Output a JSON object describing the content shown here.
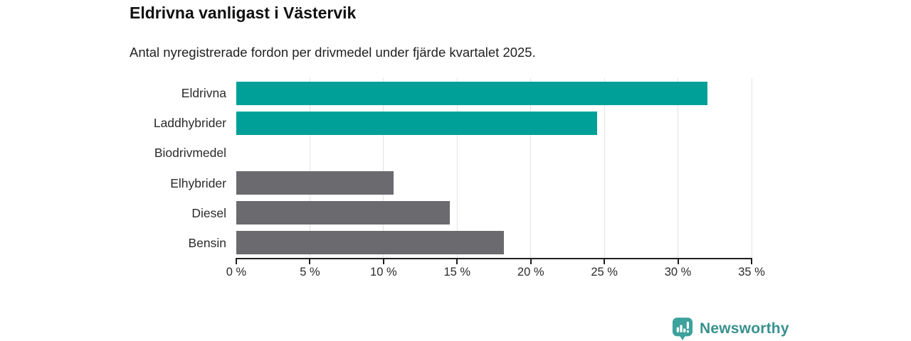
{
  "chart": {
    "title": "Eldrivna vanligast i Västervik",
    "subtitle": "Antal nyregistrerade fordon per drivmedel under fjärde kvartalet 2025."
  },
  "chart_data": {
    "type": "bar",
    "orientation": "horizontal",
    "title": "Eldrivna vanligast i Västervik",
    "subtitle": "Antal nyregistrerade fordon per drivmedel under fjärde kvartalet 2025.",
    "categories": [
      "Eldrivna",
      "Laddhybrider",
      "Biodrivmedel",
      "Elhybrider",
      "Diesel",
      "Bensin"
    ],
    "values": [
      32,
      24.5,
      0,
      10.7,
      14.5,
      18.2
    ],
    "unit": "%",
    "xlim": [
      0,
      35
    ],
    "x_tick_values": [
      0,
      5,
      10,
      15,
      20,
      25,
      30,
      35
    ],
    "x_tick_labels": [
      "0 %",
      "5 %",
      "10 %",
      "15 %",
      "20 %",
      "25 %",
      "30 %",
      "35 %"
    ],
    "bar_colors": [
      "#00a098",
      "#00a098",
      "#6a6a6f",
      "#6a6a6f",
      "#6a6a6f",
      "#6a6a6f"
    ],
    "highlight_color": "#00a098",
    "default_color": "#6a6a6f",
    "gridline_color": "#e2e2e2",
    "axis_color": "#1f1f1f",
    "grid": true,
    "legend": false,
    "ylabel": "",
    "xlabel": ""
  },
  "footer": {
    "brand": "Newsworthy",
    "brand_text_color": "#38918e",
    "brand_icon_color": "#3da19c",
    "brand_icon": "chart-speech-bubble"
  }
}
